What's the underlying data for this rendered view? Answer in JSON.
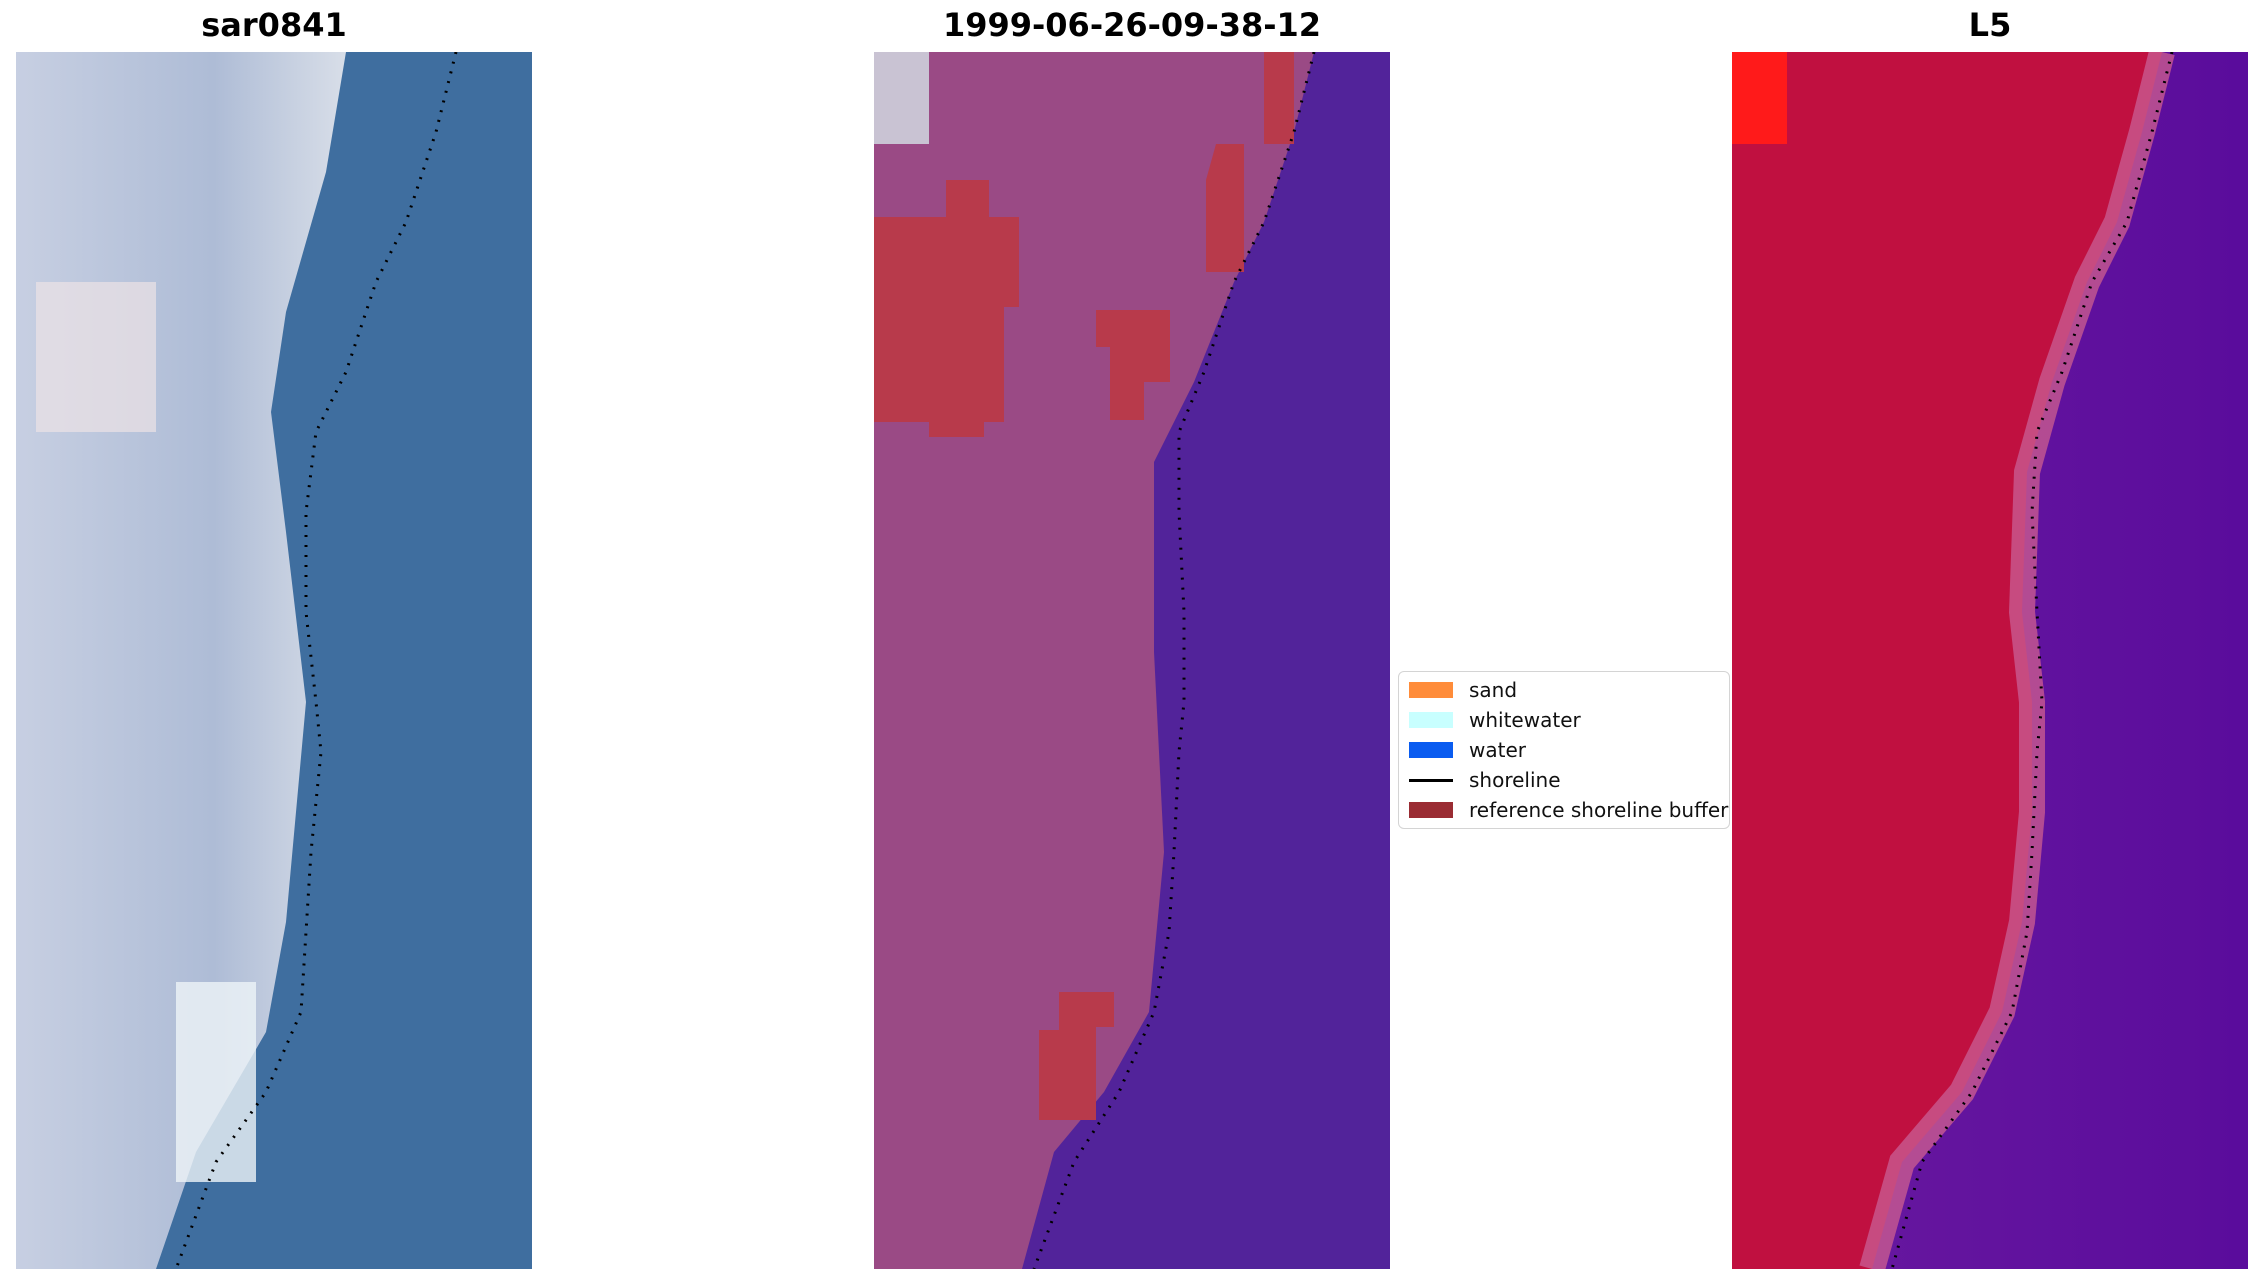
{
  "panels": [
    {
      "title": "sar0841",
      "image": "rgb-satellite-image"
    },
    {
      "title": "1999-06-26-09-38-12",
      "image": "classified-image"
    },
    {
      "title": "L5",
      "image": "mndwi-image"
    }
  ],
  "legend": {
    "items": [
      {
        "label": "sand",
        "color": "#ff8c3a",
        "kind": "patch"
      },
      {
        "label": "whitewater",
        "color": "#c8ffff",
        "kind": "patch"
      },
      {
        "label": "water",
        "color": "#0a5cf0",
        "kind": "patch"
      },
      {
        "label": "shoreline",
        "color": "#000000",
        "kind": "line"
      },
      {
        "label": "reference shoreline buffer",
        "color": "#9a2c33",
        "kind": "patch"
      }
    ]
  },
  "colors": {
    "rgb_land": "#b9c3d8",
    "rgb_water": "#3f6e9f",
    "class_land": "#9a4a85",
    "class_water": "#52239a",
    "class_buffer": "#b83a4b",
    "mndwi_land": "#c01040",
    "mndwi_water": "#6a1aa0"
  }
}
